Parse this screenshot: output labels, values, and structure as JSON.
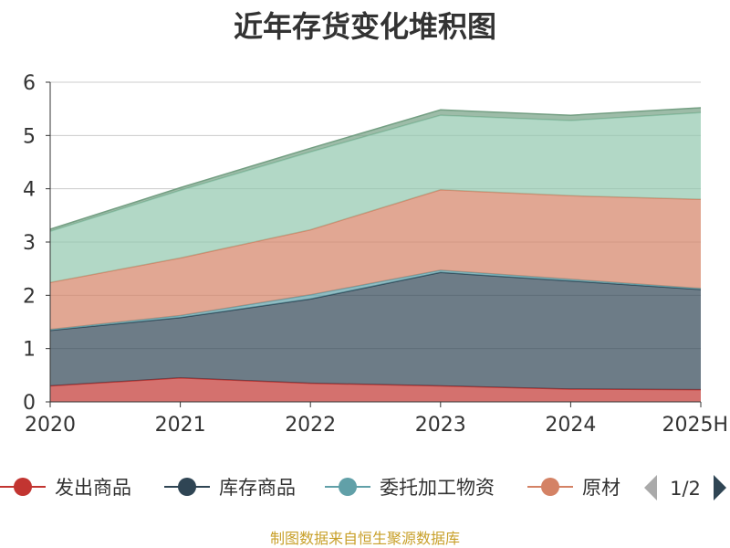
{
  "chart_data": {
    "type": "area",
    "stacked": true,
    "title": "近年存货变化堆积图",
    "ylabel": "",
    "xlabel": "",
    "x": [
      "2020",
      "2021",
      "2022",
      "2023",
      "2024",
      "2025H"
    ],
    "ylim": [
      0,
      6
    ],
    "yticks": [
      0,
      1,
      2,
      3,
      4,
      5,
      6
    ],
    "grid": true,
    "legend_position": "bottom",
    "series": [
      {
        "name": "发出商品",
        "color": "#c23531",
        "values": [
          0.3,
          0.45,
          0.35,
          0.3,
          0.24,
          0.23
        ]
      },
      {
        "name": "库存商品",
        "color": "#2f4554",
        "values": [
          1.04,
          1.13,
          1.58,
          2.13,
          2.03,
          1.88
        ]
      },
      {
        "name": "委托加工物资",
        "color": "#61a0a8",
        "values": [
          0.02,
          0.04,
          0.08,
          0.04,
          0.03,
          0.02
        ]
      },
      {
        "name": "原材料",
        "color": "#d48265",
        "values": [
          0.88,
          1.08,
          1.22,
          1.51,
          1.57,
          1.67
        ]
      },
      {
        "name": "",
        "color": "#91c7ae",
        "values": [
          0.96,
          1.27,
          1.46,
          1.4,
          1.41,
          1.63
        ]
      },
      {
        "name": "",
        "color": "#749f83",
        "values": [
          0.04,
          0.05,
          0.07,
          0.1,
          0.1,
          0.09
        ]
      }
    ],
    "legend_labels": [
      "发出商品",
      "库存商品",
      "委托加工物资",
      "原材"
    ],
    "legend_page": "1/2"
  },
  "footer": {
    "source": "制图数据来自恒生聚源数据库"
  }
}
